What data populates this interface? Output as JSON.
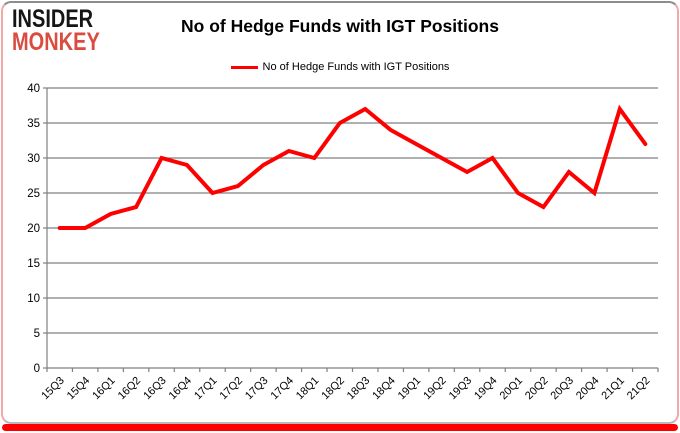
{
  "logo": {
    "line1": "INSIDER",
    "line2": "MONKEY"
  },
  "header": {
    "title": "No of Hedge Funds with IGT Positions"
  },
  "legend": {
    "label": "No of Hedge Funds with IGT Positions",
    "swatch_color": "#FF0000"
  },
  "colors": {
    "series_red": "#FF0000",
    "grid_gray": "#808080",
    "axis_gray": "#808080",
    "label_black": "#000000",
    "logo_black": "#151515",
    "logo_red": "#D94C3F",
    "border_top_gray": "#8D8D8D",
    "border_side_pink": "#F2A9A5",
    "bottom_bar_red": "#FF0000"
  },
  "chart_data": {
    "type": "line",
    "title": "No of Hedge Funds with IGT Positions",
    "categories": [
      "15Q3",
      "15Q4",
      "16Q1",
      "16Q2",
      "16Q3",
      "16Q4",
      "17Q1",
      "17Q2",
      "17Q3",
      "17Q4",
      "18Q1",
      "18Q2",
      "18Q3",
      "18Q4",
      "19Q1",
      "19Q2",
      "19Q3",
      "19Q4",
      "20Q1",
      "20Q2",
      "20Q3",
      "20Q4",
      "21Q1",
      "21Q2"
    ],
    "series": [
      {
        "name": "No of Hedge Funds with IGT Positions",
        "color": "#FF0000",
        "values": [
          20,
          20,
          22,
          23,
          30,
          29,
          25,
          26,
          29,
          31,
          30,
          35,
          37,
          34,
          32,
          30,
          28,
          30,
          25,
          23,
          28,
          25,
          37,
          32
        ]
      }
    ],
    "xlabel": "",
    "ylabel": "",
    "ylim": [
      0,
      40
    ],
    "ytick_step": 5,
    "grid": true,
    "gridline_color": "#808080",
    "legend_position": "top-center",
    "x_label_rotation": -45
  }
}
